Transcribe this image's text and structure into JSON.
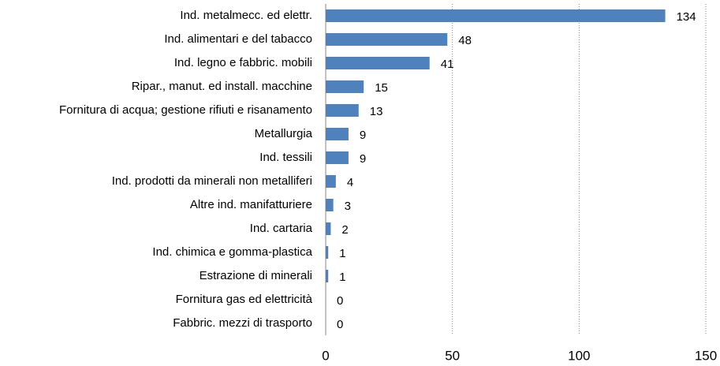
{
  "chart_data": {
    "type": "bar",
    "orientation": "horizontal",
    "categories": [
      "Ind. metalmecc. ed elettr.",
      "Ind. alimentari e del tabacco",
      "Ind. legno e fabbric. mobili",
      "Ripar., manut. ed install. macchine",
      "Fornitura di acqua; gestione rifiuti e risanamento",
      "Metallurgia",
      "Ind. tessili",
      "Ind. prodotti da minerali non metalliferi",
      "Altre ind. manifatturiere",
      "Ind. cartaria",
      "Ind. chimica e gomma-plastica",
      "Estrazione di minerali",
      "Fornitura gas ed elettricità",
      "Fabbric. mezzi di trasporto"
    ],
    "values": [
      134,
      48,
      41,
      15,
      13,
      9,
      9,
      4,
      3,
      2,
      1,
      1,
      0,
      0
    ],
    "color": "#4f81bd",
    "xlim": [
      0,
      150
    ],
    "xticks": [
      0,
      50,
      100,
      150
    ],
    "grid": true
  }
}
